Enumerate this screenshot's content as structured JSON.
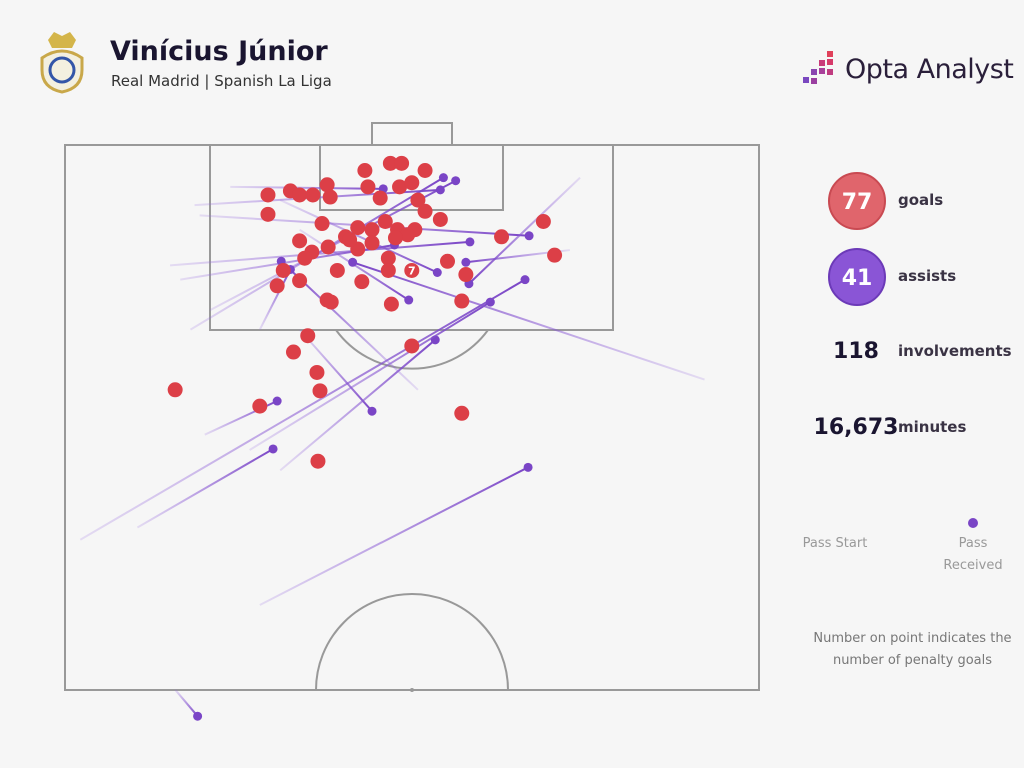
{
  "header": {
    "title": "Vinícius Júnior",
    "subtitle": "Real Madrid | Spanish La Liga",
    "brand": "Opta Analyst"
  },
  "stats": [
    {
      "value": "77",
      "label": "goals"
    },
    {
      "value": "41",
      "label": "assists"
    },
    {
      "value": "118",
      "label": "involvements"
    },
    {
      "value": "16,673",
      "label": "minutes"
    }
  ],
  "legend": {
    "start": "Pass Start",
    "end": "Pass Received"
  },
  "note": "Number on point indicates the number of penalty goals",
  "pitch": {
    "goals": [
      [
        29.4,
        2.5
      ],
      [
        31.9,
        1.8
      ],
      [
        33.0,
        1.8
      ],
      [
        35.3,
        2.5
      ],
      [
        29.7,
        4.1
      ],
      [
        32.8,
        4.1
      ],
      [
        34.0,
        3.7
      ],
      [
        19.9,
        4.9
      ],
      [
        22.1,
        4.5
      ],
      [
        23.0,
        4.9
      ],
      [
        24.3,
        4.9
      ],
      [
        25.7,
        3.9
      ],
      [
        26.0,
        5.1
      ],
      [
        19.9,
        6.8
      ],
      [
        25.2,
        7.7
      ],
      [
        27.5,
        9.0
      ],
      [
        28.7,
        8.1
      ],
      [
        30.1,
        8.3
      ],
      [
        31.4,
        7.5
      ],
      [
        32.6,
        8.3
      ],
      [
        34.3,
        8.3
      ],
      [
        35.3,
        6.5
      ],
      [
        36.8,
        7.3
      ],
      [
        23.0,
        9.4
      ],
      [
        24.2,
        10.5
      ],
      [
        25.8,
        10.0
      ],
      [
        28.7,
        10.2
      ],
      [
        30.1,
        9.6
      ],
      [
        23.5,
        11.1
      ],
      [
        21.4,
        12.3
      ],
      [
        26.7,
        12.3
      ],
      [
        31.7,
        11.1
      ],
      [
        31.7,
        12.3
      ],
      [
        37.5,
        11.4
      ],
      [
        39.3,
        12.7
      ],
      [
        42.8,
        9.0
      ],
      [
        46.9,
        7.5
      ],
      [
        48.0,
        10.8
      ],
      [
        20.8,
        13.8
      ],
      [
        23.0,
        13.3
      ],
      [
        29.1,
        13.4
      ],
      [
        25.7,
        15.2
      ],
      [
        26.1,
        15.4
      ],
      [
        32.0,
        15.6
      ],
      [
        38.9,
        15.3
      ],
      [
        23.8,
        18.7
      ],
      [
        22.4,
        20.3
      ],
      [
        34.0,
        19.7
      ],
      [
        24.7,
        22.3
      ],
      [
        25.0,
        24.1
      ],
      [
        10.8,
        24.0
      ],
      [
        19.1,
        25.6
      ],
      [
        38.9,
        26.3
      ],
      [
        24.8,
        31.0
      ],
      [
        33.6,
        8.8
      ],
      [
        30.9,
        5.2
      ],
      [
        34.6,
        5.4
      ],
      [
        32.4,
        9.1
      ],
      [
        27.9,
        9.3
      ]
    ],
    "penalty_goal": {
      "x": 34.0,
      "y": 12.3,
      "label": "7"
    },
    "assists": [
      [
        19.1,
        45.1,
        45.4,
        31.6
      ],
      [
        10.8,
        53.4,
        13.0,
        56.0
      ],
      [
        7.1,
        37.5,
        20.4,
        29.8
      ],
      [
        23.0,
        18.1,
        30.1,
        26.1
      ],
      [
        13.7,
        28.4,
        20.8,
        25.1
      ],
      [
        21.1,
        31.9,
        36.3,
        19.1
      ],
      [
        18.1,
        29.9,
        41.7,
        15.4
      ],
      [
        1.5,
        38.7,
        45.1,
        13.2
      ],
      [
        12.3,
        18.1,
        37.1,
        3.2
      ],
      [
        14.2,
        16.2,
        38.3,
        3.5
      ],
      [
        12.7,
        5.9,
        36.8,
        4.4
      ],
      [
        16.2,
        4.1,
        31.2,
        4.3
      ],
      [
        10.3,
        11.8,
        39.7,
        9.5
      ],
      [
        13.2,
        6.9,
        45.5,
        8.9
      ],
      [
        11.3,
        13.2,
        32.3,
        9.8
      ],
      [
        21.1,
        5.4,
        36.5,
        12.5
      ],
      [
        49.5,
        10.3,
        39.3,
        11.5
      ],
      [
        23.0,
        8.3,
        33.7,
        15.2
      ],
      [
        50.5,
        3.2,
        39.6,
        13.6
      ],
      [
        34.6,
        24.0,
        21.2,
        11.4
      ],
      [
        62.7,
        23.0,
        28.2,
        11.5
      ],
      [
        19.1,
        18.1,
        22.1,
        12.2
      ]
    ]
  }
}
